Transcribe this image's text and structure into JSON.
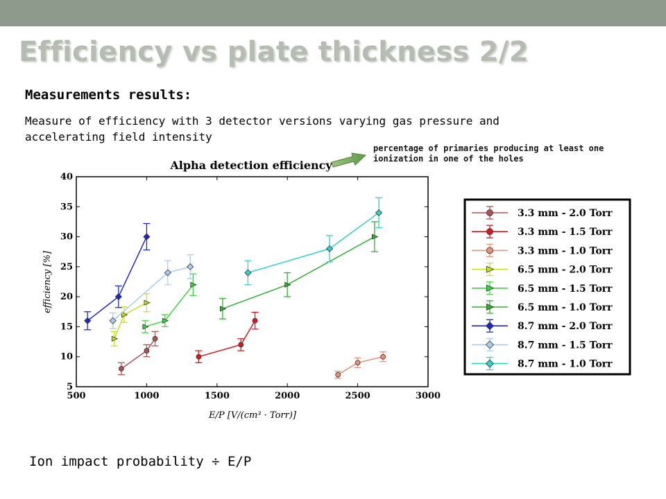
{
  "slide": {
    "title": "Efficiency vs plate thickness 2/2",
    "subheading": "Measurements results:",
    "description": "Measure of efficiency with 3 detector versions varying gas pressure and accelerating field intensity",
    "annotation": "percentage of primaries producing at least one ionization in one of the holes",
    "footer": "Ion impact probability ÷ E/P"
  },
  "chart_data": {
    "type": "scatter",
    "title": "Alpha detection efficiency",
    "xlabel": "E/P [V/(cm³ · Torr)]",
    "ylabel": "efficiency [%]",
    "xlim": [
      500,
      3000
    ],
    "ylim": [
      5,
      40
    ],
    "x_ticks": [
      500,
      1000,
      1500,
      2000,
      2500,
      3000
    ],
    "y_ticks": [
      5,
      10,
      15,
      20,
      25,
      30,
      35,
      40
    ],
    "grid": false,
    "legend_position": "right, outside plot",
    "series": [
      {
        "name": "3.3 mm - 2.0 Torr",
        "color": "#b05050",
        "marker": "circle",
        "x": [
          820,
          1000,
          1060
        ],
        "y": [
          8,
          11,
          13
        ],
        "err": [
          1,
          1,
          1.2
        ]
      },
      {
        "name": "3.3 mm - 1.5 Torr",
        "color": "#d81818",
        "marker": "circle",
        "x": [
          1370,
          1670,
          1770
        ],
        "y": [
          10,
          12,
          16
        ],
        "err": [
          1,
          1,
          1.4
        ]
      },
      {
        "name": "3.3 mm - 1.0 Torr",
        "color": "#e89070",
        "marker": "circle",
        "x": [
          2360,
          2500,
          2680
        ],
        "y": [
          7,
          9,
          10
        ],
        "err": [
          0.6,
          0.8,
          0.8
        ]
      },
      {
        "name": "6.5 mm - 2.0 Torr",
        "color": "#c8e020",
        "marker": "triangle-right",
        "x": [
          770,
          840,
          1000
        ],
        "y": [
          13,
          17,
          19
        ],
        "err": [
          1.2,
          1.3,
          1.5
        ]
      },
      {
        "name": "6.5 mm - 1.5 Torr",
        "color": "#38d838",
        "marker": "triangle-right",
        "x": [
          990,
          1130,
          1330
        ],
        "y": [
          15,
          16,
          22
        ],
        "err": [
          1,
          1,
          1.8
        ]
      },
      {
        "name": "6.5 mm - 1.0 Torr",
        "color": "#30b030",
        "marker": "triangle-right",
        "x": [
          1540,
          2000,
          2620
        ],
        "y": [
          18,
          22,
          30
        ],
        "err": [
          1.7,
          2,
          2.5
        ]
      },
      {
        "name": "8.7 mm - 2.0 Torr",
        "color": "#1c28c8",
        "marker": "diamond",
        "x": [
          580,
          800,
          1000
        ],
        "y": [
          16,
          20,
          30
        ],
        "err": [
          1.5,
          1.8,
          2.2
        ]
      },
      {
        "name": "8.7 mm - 1.5 Torr",
        "color": "#a8ccec",
        "marker": "diamond",
        "x": [
          760,
          1150,
          1310
        ],
        "y": [
          16,
          24,
          25
        ],
        "err": [
          1.3,
          2,
          2
        ]
      },
      {
        "name": "8.7 mm - 1.0 Torr",
        "color": "#30d0c8",
        "marker": "diamond",
        "x": [
          1720,
          2300,
          2650
        ],
        "y": [
          24,
          28,
          34
        ],
        "err": [
          2,
          2.2,
          2.5
        ]
      }
    ]
  }
}
